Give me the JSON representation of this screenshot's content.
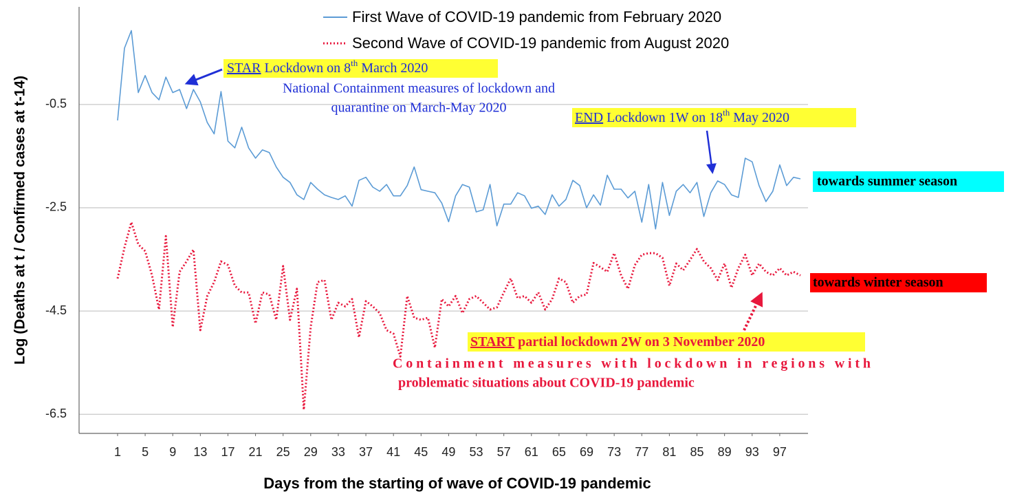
{
  "chart_data": {
    "type": "line",
    "xlabel": "Days from the starting of wave of COVID-19 pandemic",
    "ylabel": "Log (Deaths at t  /  Confirmed cases at t-14)",
    "x": [
      1,
      2,
      3,
      4,
      5,
      6,
      7,
      8,
      9,
      10,
      11,
      12,
      13,
      14,
      15,
      16,
      17,
      18,
      19,
      20,
      21,
      22,
      23,
      24,
      25,
      26,
      27,
      28,
      29,
      30,
      31,
      32,
      33,
      34,
      35,
      36,
      37,
      38,
      39,
      40,
      41,
      42,
      43,
      44,
      45,
      46,
      47,
      48,
      49,
      50,
      51,
      52,
      53,
      54,
      55,
      56,
      57,
      58,
      59,
      60,
      61,
      62,
      63,
      64,
      65,
      66,
      67,
      68,
      69,
      70,
      71,
      72,
      73,
      74,
      75,
      76,
      77,
      78,
      79,
      80,
      81,
      82,
      83,
      84,
      85,
      86,
      87,
      88,
      89,
      90,
      91,
      92,
      93,
      94,
      95,
      96,
      97,
      98,
      99,
      100
    ],
    "series": [
      {
        "name": "First Wave of COVID-19 pandemic from February 2020",
        "color": "#5b9bd5",
        "style": "solid",
        "values": [
          -0.81,
          0.59,
          0.93,
          -0.27,
          0.06,
          -0.27,
          -0.41,
          0.03,
          -0.27,
          -0.21,
          -0.58,
          -0.21,
          -0.45,
          -0.85,
          -1.07,
          -0.25,
          -1.21,
          -1.34,
          -0.94,
          -1.34,
          -1.54,
          -1.38,
          -1.43,
          -1.71,
          -1.91,
          -2.01,
          -2.25,
          -2.34,
          -2.01,
          -2.14,
          -2.25,
          -2.3,
          -2.34,
          -2.27,
          -2.47,
          -1.97,
          -1.91,
          -2.1,
          -2.18,
          -2.05,
          -2.27,
          -2.27,
          -2.07,
          -1.71,
          -2.15,
          -2.18,
          -2.21,
          -2.41,
          -2.77,
          -2.27,
          -2.05,
          -2.1,
          -2.58,
          -2.54,
          -2.05,
          -2.85,
          -2.43,
          -2.43,
          -2.21,
          -2.27,
          -2.51,
          -2.47,
          -2.63,
          -2.25,
          -2.47,
          -2.34,
          -1.97,
          -2.07,
          -2.5,
          -2.25,
          -2.45,
          -1.87,
          -2.14,
          -2.14,
          -2.31,
          -2.18,
          -2.78,
          -2.05,
          -2.91,
          -2.01,
          -2.65,
          -2.18,
          -2.05,
          -2.21,
          -2.01,
          -2.67,
          -2.21,
          -1.98,
          -2.05,
          -2.25,
          -2.3,
          -1.54,
          -1.61,
          -2.07,
          -2.38,
          -2.18,
          -1.67,
          -2.07,
          -1.91,
          -1.94
        ]
      },
      {
        "name": "Second Wave of COVID-19 pandemic from August 2020",
        "color": "#e8173c",
        "style": "dotted",
        "values": [
          -3.87,
          -3.27,
          -2.78,
          -3.21,
          -3.34,
          -3.81,
          -4.47,
          -3.05,
          -4.81,
          -3.74,
          -3.54,
          -3.31,
          -4.87,
          -4.21,
          -3.94,
          -3.54,
          -3.61,
          -4.01,
          -4.14,
          -4.14,
          -4.74,
          -4.14,
          -4.18,
          -4.67,
          -3.63,
          -4.67,
          -4.07,
          -6.41,
          -4.81,
          -3.94,
          -3.9,
          -4.67,
          -4.34,
          -4.41,
          -4.27,
          -5.01,
          -4.31,
          -4.41,
          -4.54,
          -4.87,
          -4.94,
          -5.38,
          -4.21,
          -4.63,
          -4.67,
          -4.63,
          -5.21,
          -4.27,
          -4.41,
          -4.21,
          -4.54,
          -4.27,
          -4.21,
          -4.34,
          -4.47,
          -4.43,
          -4.14,
          -3.87,
          -4.25,
          -4.21,
          -4.34,
          -4.14,
          -4.47,
          -4.27,
          -3.87,
          -3.94,
          -4.34,
          -4.21,
          -4.18,
          -3.57,
          -3.65,
          -3.74,
          -3.38,
          -3.81,
          -4.07,
          -3.61,
          -3.41,
          -3.38,
          -3.38,
          -3.47,
          -4.01,
          -3.58,
          -3.71,
          -3.51,
          -3.3,
          -3.54,
          -3.67,
          -3.9,
          -3.58,
          -4.05,
          -3.67,
          -3.41,
          -3.81,
          -3.58,
          -3.74,
          -3.81,
          -3.67,
          -3.81,
          -3.74,
          -3.81
        ]
      }
    ],
    "xlim": [
      -4.58,
      101.1
    ],
    "xticks": [
      1,
      5,
      9,
      13,
      17,
      21,
      25,
      29,
      33,
      37,
      41,
      45,
      49,
      53,
      57,
      61,
      65,
      69,
      73,
      77,
      81,
      85,
      89,
      93,
      97
    ],
    "ylim": [
      -6.87,
      1.39
    ],
    "yticks": [
      -6.5,
      -4.5,
      -2.5,
      -0.5
    ],
    "grid": true,
    "annotations": {
      "start_lockdown": {
        "keyword": "STAR",
        "text": " Lockdown on 8",
        "sup": "th",
        "text_end": " March 2020"
      },
      "national_measures": [
        "National Containment measures of lockdown and",
        "quarantine on March-May 2020"
      ],
      "end_lockdown": {
        "keyword": "END",
        "text": " Lockdown 1W on 18",
        "sup": "th",
        "text_end": " May 2020"
      },
      "summer": "towards summer season",
      "winter": "towards winter season",
      "partial_lockdown": {
        "keyword": "START",
        "text": " partial lockdown 2W on 3 November 2020"
      },
      "containment_measures": [
        "Containment measures with lockdown in regions with",
        "problematic situations about COVID-19 pandemic"
      ]
    }
  }
}
